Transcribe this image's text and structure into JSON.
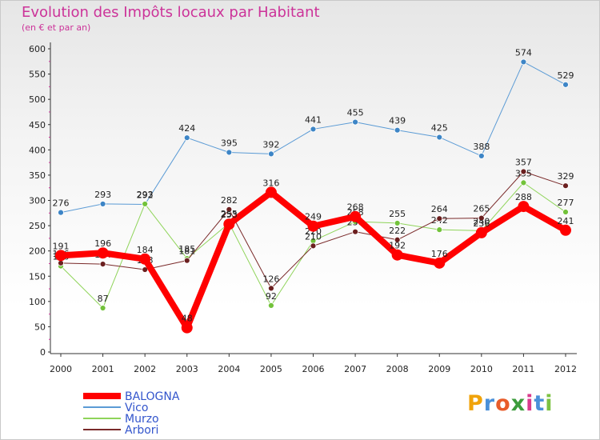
{
  "header": {
    "title": "Evolution des Impôts locaux par Habitant",
    "subtitle": "(en € et par an)"
  },
  "brand": {
    "letters": [
      "P",
      "r",
      "o",
      "x",
      "i",
      "t",
      "i"
    ],
    "colors": [
      "#f0a30a",
      "#4a90d9",
      "#e85c2a",
      "#3c9c3c",
      "#d93a8c",
      "#4a90d9",
      "#7cc242"
    ]
  },
  "chart_data": {
    "type": "line",
    "title": "Evolution des Impôts locaux par Habitant",
    "subtitle": "(en € et par an)",
    "xlabel": "",
    "ylabel": "",
    "categories": [
      "2000",
      "2001",
      "2002",
      "2003",
      "2004",
      "2005",
      "2006",
      "2007",
      "2008",
      "2009",
      "2010",
      "2011",
      "2012"
    ],
    "ylim": [
      0,
      600
    ],
    "yticks": [
      0,
      50,
      100,
      150,
      200,
      250,
      300,
      350,
      400,
      450,
      500,
      550,
      600
    ],
    "grid": false,
    "legend_position": "bottom-left",
    "series": [
      {
        "name": "Vico",
        "color": "#5b9bd5",
        "dot": "#3d85c6",
        "width": 1,
        "values": [
          276,
          293,
          292,
          424,
          395,
          392,
          441,
          455,
          439,
          425,
          388,
          574,
          529
        ],
        "labels": [
          "276",
          "293",
          "292",
          "424",
          "395",
          "392",
          "441",
          "455",
          "439",
          "425",
          "388",
          "574",
          "529"
        ]
      },
      {
        "name": "Murzo",
        "color": "#8fd45a",
        "dot": "#72c23a",
        "width": 1,
        "values": [
          170,
          87,
          293,
          185,
          255,
          92,
          220,
          258,
          255,
          242,
          240,
          335,
          277
        ],
        "labels": [
          "170",
          "87",
          "293",
          "185",
          "255",
          "92",
          "220",
          "258",
          "255",
          "242",
          "240",
          "335",
          "277"
        ]
      },
      {
        "name": "Arbori",
        "color": "#7a2a2a",
        "dot": "#6b1f1f",
        "width": 1,
        "values": [
          176,
          174,
          163,
          181,
          282,
          126,
          210,
          238,
          222,
          264,
          265,
          357,
          329
        ],
        "labels": [
          "176",
          "174",
          "163",
          "181",
          "282",
          "126",
          "210",
          "238",
          "222",
          "264",
          "265",
          "357",
          "329"
        ]
      },
      {
        "name": "BALOGNA",
        "color": "#ff0000",
        "dot": "#ff0000",
        "width": 8,
        "values": [
          191,
          196,
          184,
          48,
          253,
          316,
          249,
          268,
          192,
          176,
          236,
          288,
          241
        ],
        "labels": [
          "191",
          "196",
          "184",
          "48",
          "253",
          "316",
          "249",
          "268",
          "192",
          "176",
          "236",
          "288",
          "241"
        ]
      }
    ],
    "legend": [
      {
        "name": "BALOGNA",
        "color": "#ff0000",
        "width": 8
      },
      {
        "name": "Vico",
        "color": "#5b9bd5",
        "width": 2
      },
      {
        "name": "Murzo",
        "color": "#8fd45a",
        "width": 2
      },
      {
        "name": "Arbori",
        "color": "#7a2a2a",
        "width": 2
      }
    ]
  }
}
